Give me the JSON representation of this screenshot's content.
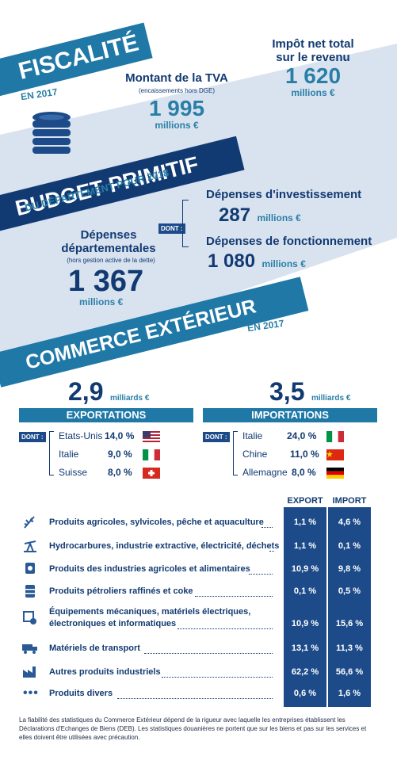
{
  "fiscalite": {
    "title": "FISCALITÉ",
    "year": "EN 2017",
    "impot_label_1": "Impôt net total",
    "impot_label_2": "sur le revenu",
    "impot_value": "1 620",
    "impot_unit": "millions €",
    "tva_label": "Montant de la TVA",
    "tva_note": "(encaissements hors DGE)",
    "tva_value": "1 995",
    "tva_unit": "millions €"
  },
  "budget": {
    "title": "BUDGET PRIMITIF",
    "subtitle": "DU DÉPARTEMENT POUR 2018",
    "dont": "DONT :",
    "invest_label": "Dépenses d'investissement",
    "invest_value": "287",
    "invest_unit": "millions €",
    "fonct_label": "Dépenses de fonctionnement",
    "fonct_value": "1 080",
    "fonct_unit": "millions €",
    "dep_label_1": "Dépenses",
    "dep_label_2": "départementales",
    "dep_note": "(hors gestion active de la dette)",
    "dep_value": "1 367",
    "dep_unit": "millions €"
  },
  "commerce": {
    "title": "COMMERCE EXTÉRIEUR",
    "year": "EN 2017",
    "exp_value": "2,9",
    "exp_unit": "milliards €",
    "imp_value": "3,5",
    "imp_unit": "milliards €",
    "exp_header": "EXPORTATIONS",
    "imp_header": "IMPORTATIONS",
    "dont": "DONT :",
    "exports": [
      {
        "country": "Etats-Unis",
        "pct": "14,0 %",
        "flag": "us-flag"
      },
      {
        "country": "Italie",
        "pct": "9,0 %",
        "flag": "italy-flag"
      },
      {
        "country": "Suisse",
        "pct": "8,0 %",
        "flag": "switzerland-flag"
      }
    ],
    "imports": [
      {
        "country": "Italie",
        "pct": "24,0 %",
        "flag": "italy-flag"
      },
      {
        "country": "Chine",
        "pct": "11,0 %",
        "flag": "china-flag"
      },
      {
        "country": "Allemagne",
        "pct": "8,0 %",
        "flag": "germany-flag"
      }
    ]
  },
  "table": {
    "col_export": "EXPORT",
    "col_import": "IMPORT",
    "rows": [
      {
        "label": "Produits agricoles, sylvicoles, pêche et aquaculture",
        "label2": "",
        "export": "1,1 %",
        "import": "4,6 %",
        "icon": "wheat-icon"
      },
      {
        "label": "Hydrocarbures, industrie extractive, électricité, déchets",
        "label2": "",
        "export": "1,1 %",
        "import": "0,1 %",
        "icon": "oil-pump-icon"
      },
      {
        "label": "Produits des industries agricoles et alimentaires",
        "label2": "",
        "export": "10,9 %",
        "import": "9,8 %",
        "icon": "food-can-icon"
      },
      {
        "label": "Produits pétroliers raffinés et coke",
        "label2": "",
        "export": "0,1 %",
        "import": "0,5 %",
        "icon": "barrel-icon"
      },
      {
        "label": "Équipements mécaniques, matériels électriques,",
        "label2": "électroniques et informatiques",
        "export": "10,9 %",
        "import": "15,6 %",
        "icon": "equipment-icon"
      },
      {
        "label": "Matériels de transport",
        "label2": "",
        "export": "13,1 %",
        "import": "11,3 %",
        "icon": "truck-icon"
      },
      {
        "label": "Autres produits industriels",
        "label2": "",
        "export": "62,2 %",
        "import": "56,6 %",
        "icon": "factory-icon"
      },
      {
        "label": "Produits divers",
        "label2": "",
        "export": "0,6 %",
        "import": "1,6 %",
        "icon": "dots-icon"
      }
    ]
  },
  "footnote": "La fiabilité des statistiques du Commerce Extérieur dépend de la rigueur avec laquelle les entreprises établissent les Déclarations d'Echanges de Biens (DEB). Les statistiques douanières ne portent que sur les biens et pas sur les services et elles doivent être utilisées avec précaution.",
  "colors": {
    "banner": "#1f78a6",
    "navy": "#123a72",
    "band": "#d8e2ee",
    "column": "#1d4b8a"
  }
}
